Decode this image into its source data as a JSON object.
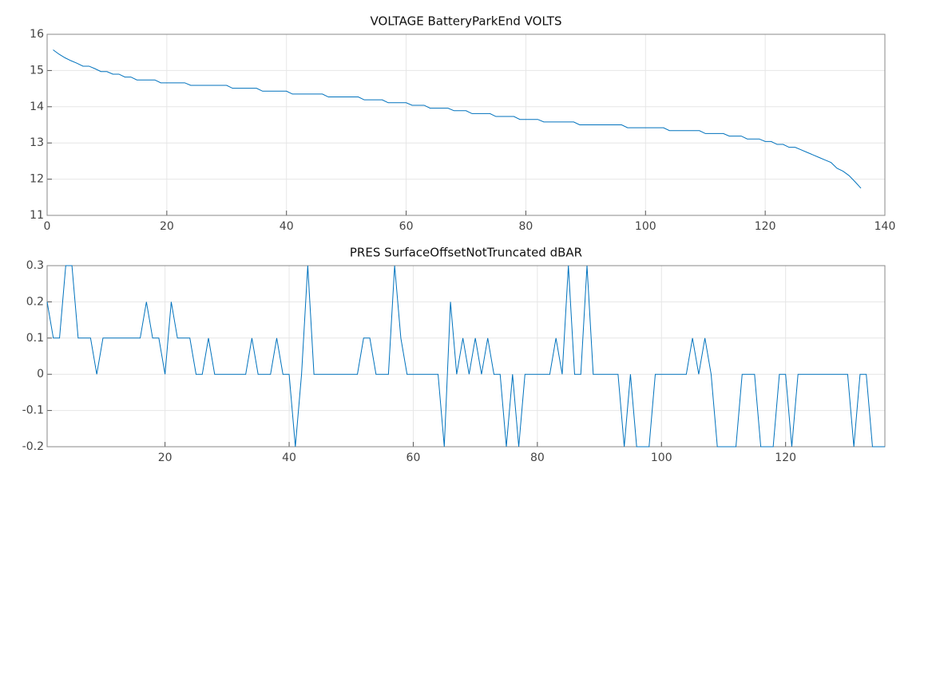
{
  "chart_data": [
    {
      "type": "line",
      "title": "VOLTAGE BatteryParkEnd VOLTS",
      "x": [
        1,
        2,
        3,
        4,
        5,
        6,
        7,
        8,
        9,
        10,
        11,
        12,
        13,
        14,
        15,
        16,
        17,
        18,
        19,
        20,
        21,
        22,
        23,
        24,
        25,
        26,
        27,
        28,
        29,
        30,
        31,
        32,
        33,
        34,
        35,
        36,
        37,
        38,
        39,
        40,
        41,
        42,
        43,
        44,
        45,
        46,
        47,
        48,
        49,
        50,
        51,
        52,
        53,
        54,
        55,
        56,
        57,
        58,
        59,
        60,
        61,
        62,
        63,
        64,
        65,
        66,
        67,
        68,
        69,
        70,
        71,
        72,
        73,
        74,
        75,
        76,
        77,
        78,
        79,
        80,
        81,
        82,
        83,
        84,
        85,
        86,
        87,
        88,
        89,
        90,
        91,
        92,
        93,
        94,
        95,
        96,
        97,
        98,
        99,
        100,
        101,
        102,
        103,
        104,
        105,
        106,
        107,
        108,
        109,
        110,
        111,
        112,
        113,
        114,
        115,
        116,
        117,
        118,
        119,
        120,
        121,
        122,
        123,
        124,
        125,
        126,
        127,
        128,
        129,
        130,
        131,
        132,
        133,
        134,
        135,
        136
      ],
      "series": [
        {
          "color": "#0072bd",
          "values": [
            15.57,
            15.45,
            15.35,
            15.27,
            15.2,
            15.12,
            15.12,
            15.05,
            14.97,
            14.97,
            14.9,
            14.9,
            14.82,
            14.82,
            14.74,
            14.74,
            14.74,
            14.74,
            14.66,
            14.66,
            14.66,
            14.66,
            14.66,
            14.59,
            14.59,
            14.59,
            14.59,
            14.59,
            14.59,
            14.59,
            14.51,
            14.51,
            14.51,
            14.51,
            14.51,
            14.43,
            14.43,
            14.43,
            14.43,
            14.43,
            14.35,
            14.35,
            14.35,
            14.35,
            14.35,
            14.35,
            14.27,
            14.27,
            14.27,
            14.27,
            14.27,
            14.27,
            14.19,
            14.19,
            14.19,
            14.19,
            14.11,
            14.11,
            14.11,
            14.11,
            14.04,
            14.04,
            14.04,
            13.96,
            13.96,
            13.96,
            13.96,
            13.89,
            13.89,
            13.89,
            13.81,
            13.81,
            13.81,
            13.81,
            13.73,
            13.73,
            13.73,
            13.73,
            13.65,
            13.65,
            13.65,
            13.65,
            13.58,
            13.58,
            13.58,
            13.58,
            13.58,
            13.58,
            13.5,
            13.5,
            13.5,
            13.5,
            13.5,
            13.5,
            13.5,
            13.5,
            13.42,
            13.42,
            13.42,
            13.42,
            13.42,
            13.42,
            13.42,
            13.34,
            13.34,
            13.34,
            13.34,
            13.34,
            13.34,
            13.26,
            13.26,
            13.26,
            13.26,
            13.19,
            13.19,
            13.19,
            13.11,
            13.11,
            13.11,
            13.04,
            13.04,
            12.96,
            12.96,
            12.88,
            12.88,
            12.81,
            12.74,
            12.67,
            12.6,
            12.53,
            12.46,
            12.3,
            12.22,
            12.1,
            11.93,
            11.75
          ]
        }
      ],
      "xlim": [
        0,
        140
      ],
      "xticks": [
        0,
        20,
        40,
        60,
        80,
        100,
        120,
        140
      ],
      "ylim": [
        11,
        16
      ],
      "yticks": [
        11,
        12,
        13,
        14,
        15,
        16
      ],
      "grid": true
    },
    {
      "type": "line",
      "title": "PRES SurfaceOffsetNotTruncated dBAR",
      "x": [
        1,
        2,
        3,
        4,
        5,
        6,
        7,
        8,
        9,
        10,
        11,
        12,
        13,
        14,
        15,
        16,
        17,
        18,
        19,
        20,
        21,
        22,
        23,
        24,
        25,
        26,
        27,
        28,
        29,
        30,
        31,
        32,
        33,
        34,
        35,
        36,
        37,
        38,
        39,
        40,
        41,
        42,
        43,
        44,
        45,
        46,
        47,
        48,
        49,
        50,
        51,
        52,
        53,
        54,
        55,
        56,
        57,
        58,
        59,
        60,
        61,
        62,
        63,
        64,
        65,
        66,
        67,
        68,
        69,
        70,
        71,
        72,
        73,
        74,
        75,
        76,
        77,
        78,
        79,
        80,
        81,
        82,
        83,
        84,
        85,
        86,
        87,
        88,
        89,
        90,
        91,
        92,
        93,
        94,
        95,
        96,
        97,
        98,
        99,
        100,
        101,
        102,
        103,
        104,
        105,
        106,
        107,
        108,
        109,
        110,
        111,
        112,
        113,
        114,
        115,
        116,
        117,
        118,
        119,
        120,
        121,
        122,
        123,
        124,
        125,
        126,
        127,
        128,
        129,
        130,
        131,
        132,
        133,
        134,
        135,
        136
      ],
      "series": [
        {
          "color": "#0072bd",
          "values": [
            0.2,
            0.1,
            0.1,
            0.3,
            0.3,
            0.1,
            0.1,
            0.1,
            0,
            0.1,
            0.1,
            0.1,
            0.1,
            0.1,
            0.1,
            0.1,
            0.2,
            0.1,
            0.1,
            0,
            0.2,
            0.1,
            0.1,
            0.1,
            0,
            0,
            0.1,
            0,
            0,
            0,
            0,
            0,
            0,
            0.1,
            0,
            0,
            0,
            0.1,
            0,
            0,
            -0.2,
            0,
            0.3,
            0,
            0,
            0,
            0,
            0,
            0,
            0,
            0,
            0.1,
            0.1,
            0,
            0,
            0,
            0.3,
            0.1,
            0,
            0,
            0,
            0,
            0,
            0,
            -0.2,
            0.2,
            0,
            0.1,
            0,
            0.1,
            0,
            0.1,
            0,
            0,
            -0.2,
            0,
            -0.2,
            0,
            0,
            0,
            0,
            0,
            0.1,
            0,
            0.3,
            0,
            0,
            0.3,
            0,
            0,
            0,
            0,
            0,
            -0.2,
            0,
            -0.2,
            -0.2,
            -0.2,
            0,
            0,
            0,
            0,
            0,
            0,
            0.1,
            0,
            0.1,
            0,
            -0.2,
            -0.2,
            -0.2,
            -0.2,
            0,
            0,
            0,
            -0.2,
            -0.2,
            -0.2,
            0,
            0,
            -0.2,
            0,
            0,
            0,
            0,
            0,
            0,
            0,
            0,
            0,
            -0.2,
            0,
            0,
            -0.2,
            -0.2,
            -0.2
          ]
        }
      ],
      "xlim": [
        1,
        136
      ],
      "xticks": [
        20,
        40,
        60,
        80,
        100,
        120
      ],
      "ylim": [
        -0.2,
        0.3
      ],
      "yticks": [
        -0.2,
        -0.1,
        0,
        0.1,
        0.2,
        0.3
      ],
      "grid": true
    }
  ]
}
